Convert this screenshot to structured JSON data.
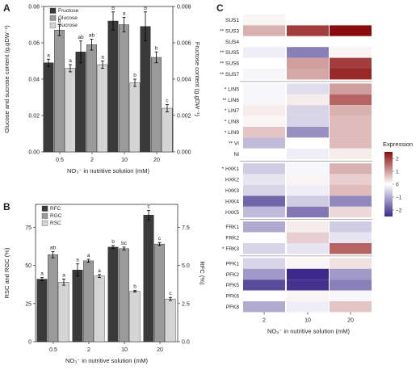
{
  "panels": {
    "A": "A",
    "B": "B",
    "C": "C"
  },
  "chart_data": [
    {
      "id": "A",
      "type": "bar",
      "categories": [
        "0.5",
        "2",
        "10",
        "20"
      ],
      "xlabel": "NO₃⁻ in nutritive solution (mM)",
      "ylabel": "Glucose and sucrose content (g.gDW⁻¹)",
      "ylabel_right": "Fructose content (g.gDW⁻¹)",
      "ylim": [
        0,
        0.08
      ],
      "yticks": [
        "0.00",
        "0.02",
        "0.04",
        "0.06",
        "0.08"
      ],
      "ylim_right": [
        0,
        0.008
      ],
      "yticks_right": [
        "0.000",
        "0.002",
        "0.004",
        "0.006",
        "0.008"
      ],
      "legend_position": "top-left",
      "series": [
        {
          "name": "Fructose",
          "axis": "right",
          "color": "#3a3a3a",
          "values": [
            0.0049,
            0.0055,
            0.0072,
            0.0069
          ],
          "errors": [
            0.0002,
            0.0006,
            0.0005,
            0.0008
          ],
          "labels": [
            "a",
            "ab",
            "b",
            "b"
          ]
        },
        {
          "name": "Glucose",
          "axis": "left",
          "color": "#9a9a9a",
          "values": [
            0.067,
            0.059,
            0.07,
            0.052
          ],
          "errors": [
            0.003,
            0.003,
            0.004,
            0.003
          ],
          "labels": [
            "b",
            "ab",
            "a",
            "b"
          ]
        },
        {
          "name": "Sucrose",
          "axis": "left",
          "color": "#d4d4d4",
          "values": [
            0.046,
            0.048,
            0.038,
            0.024
          ],
          "errors": [
            0.002,
            0.002,
            0.002,
            0.002
          ],
          "labels": [
            "a",
            "a",
            "b",
            "c"
          ]
        }
      ]
    },
    {
      "id": "B",
      "type": "bar",
      "categories": [
        "0.5",
        "2",
        "10",
        "20"
      ],
      "xlabel": "NO₃⁻ in nutritive solution (mM)",
      "ylabel": "RSC and RGC (%)",
      "ylabel_right": "RFC (%)",
      "ylim": [
        0,
        90
      ],
      "yticks": [
        "0",
        "25",
        "50",
        "75"
      ],
      "ytick_values": [
        0,
        25,
        50,
        75
      ],
      "ylim_right": [
        0,
        9
      ],
      "yticks_right": [
        "0.0",
        "2.5",
        "5.0",
        "7.5"
      ],
      "legend_position": "top-left",
      "series": [
        {
          "name": "RFC",
          "axis": "right",
          "color": "#3a3a3a",
          "values": [
            4.1,
            4.7,
            6.2,
            8.3
          ],
          "errors": [
            0.1,
            0.4,
            0.1,
            0.3
          ],
          "labels": [
            "a",
            "a",
            "b",
            "c"
          ]
        },
        {
          "name": "RGC",
          "axis": "left",
          "color": "#9a9a9a",
          "values": [
            57,
            53,
            61,
            64
          ],
          "errors": [
            2,
            1,
            1,
            1
          ],
          "labels": [
            "ab",
            "a",
            "bc",
            "c"
          ]
        },
        {
          "name": "RSC",
          "axis": "left",
          "color": "#d4d4d4",
          "values": [
            39,
            43,
            33,
            28
          ],
          "errors": [
            2,
            1,
            0.5,
            1
          ],
          "labels": [
            "a",
            "a",
            "b",
            "c"
          ]
        }
      ]
    },
    {
      "id": "C",
      "type": "heatmap",
      "columns": [
        "2",
        "10",
        "20"
      ],
      "xlabel": "NO₃⁻ in nutritive solution (mM)",
      "legend_title": "Expression",
      "legend_ticks": [
        "2",
        "1",
        "0",
        "−1",
        "−2"
      ],
      "legend_tick_values": [
        2,
        1,
        0,
        -1,
        -2
      ],
      "scale": {
        "min": -2.5,
        "max": 2.5,
        "low_color": "#3b2a8a",
        "mid_color": "#ffffff",
        "high_color": "#8b0c0c"
      },
      "groups": [
        {
          "rows": [
            {
              "gene": "SUS1",
              "sig": "",
              "values": [
                0.1,
                null,
                null
              ]
            },
            {
              "gene": "SUS3",
              "sig": "**",
              "values": [
                0.8,
                2.0,
                2.6
              ]
            },
            {
              "gene": "SUS4",
              "sig": "",
              "values": [
                0.0,
                0.0,
                0.0
              ]
            },
            {
              "gene": "SUS5",
              "sig": "**",
              "values": [
                -0.2,
                -1.5,
                0.1
              ]
            },
            {
              "gene": "SUS6",
              "sig": "**",
              "values": [
                0.0,
                1.0,
                2.0
              ]
            },
            {
              "gene": "SUS7",
              "sig": "**",
              "values": [
                -0.1,
                0.9,
                2.2
              ]
            }
          ]
        },
        {
          "rows": [
            {
              "gene": "LIN5",
              "sig": "*",
              "values": [
                -0.1,
                -0.4,
                1.0
              ]
            },
            {
              "gene": "LIN6",
              "sig": "**",
              "values": [
                -0.1,
                0.2,
                1.6
              ]
            },
            {
              "gene": "LIN7",
              "sig": "*",
              "values": [
                0.2,
                -0.5,
                0.8
              ]
            },
            {
              "gene": "LIN8",
              "sig": "*",
              "values": [
                0.1,
                -0.5,
                0.7
              ]
            },
            {
              "gene": "LIN9",
              "sig": "*",
              "values": [
                0.6,
                -1.3,
                0.7
              ]
            },
            {
              "gene": "VI",
              "sig": "**",
              "values": [
                -0.8,
                0.0,
                0.7
              ]
            },
            {
              "gene": "NI",
              "sig": "",
              "values": [
                0.0,
                -0.2,
                0.2
              ]
            }
          ]
        },
        {
          "rows": [
            {
              "gene": "HXK1",
              "sig": "*",
              "values": [
                -0.6,
                -0.1,
                0.8
              ]
            },
            {
              "gene": "HXK2",
              "sig": "",
              "values": [
                -0.3,
                0.1,
                0.5
              ]
            },
            {
              "gene": "HXK3",
              "sig": "",
              "values": [
                -0.5,
                -0.2,
                0.7
              ]
            },
            {
              "gene": "HXK4",
              "sig": "",
              "values": [
                -1.8,
                -0.6,
                -1.4
              ]
            },
            {
              "gene": "HXK5",
              "sig": "",
              "values": [
                -0.8,
                -1.6,
                0.4
              ]
            }
          ]
        },
        {
          "rows": [
            {
              "gene": "FRK1",
              "sig": "",
              "values": [
                -1.0,
                0.2,
                -0.6
              ]
            },
            {
              "gene": "FRK2",
              "sig": "",
              "values": [
                0.0,
                0.5,
                -0.3
              ]
            },
            {
              "gene": "FRK3",
              "sig": "*",
              "values": [
                -0.5,
                -0.3,
                1.6
              ]
            }
          ]
        },
        {
          "rows": [
            {
              "gene": "PFK1",
              "sig": "",
              "values": [
                -0.5,
                0.1,
                0.3
              ]
            },
            {
              "gene": "PFK2",
              "sig": "",
              "values": [
                -1.2,
                -2.8,
                -1.2
              ]
            },
            {
              "gene": "PFK5",
              "sig": "",
              "values": [
                -2.1,
                -2.4,
                -1.5
              ]
            },
            {
              "gene": "PFK6",
              "sig": "",
              "values": [
                0.0,
                0.1,
                -0.1
              ]
            },
            {
              "gene": "PFK8",
              "sig": "",
              "values": [
                -1.0,
                -0.2,
                0.6
              ]
            }
          ]
        }
      ]
    }
  ]
}
